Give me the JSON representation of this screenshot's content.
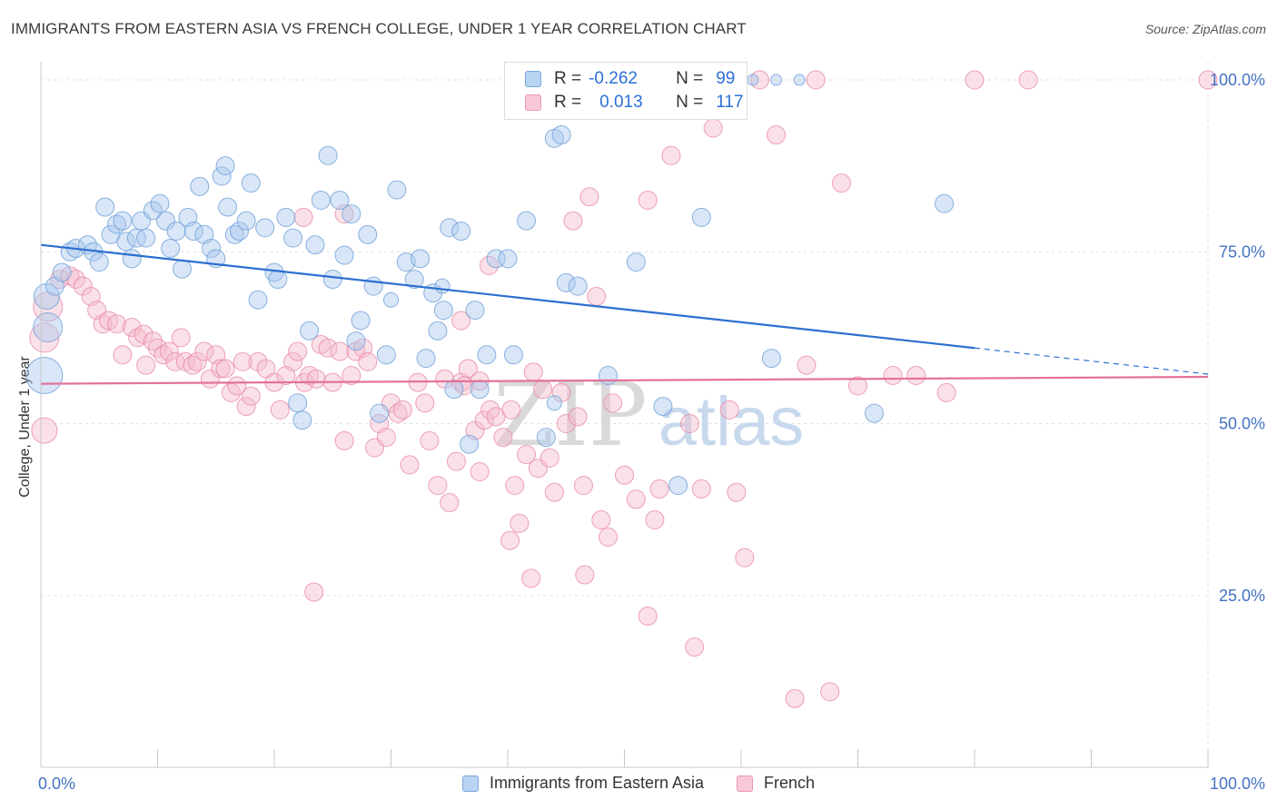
{
  "header": {
    "title": "IMMIGRANTS FROM EASTERN ASIA VS FRENCH COLLEGE, UNDER 1 YEAR CORRELATION CHART",
    "source": "Source: ZipAtlas.com"
  },
  "legend": {
    "rows": [
      {
        "r_label": "R =",
        "r_value": "-0.262",
        "n_label": "N =",
        "n_value": "99"
      },
      {
        "r_label": "R =",
        "r_value": "0.013",
        "n_label": "N =",
        "n_value": "117"
      }
    ]
  },
  "watermark": {
    "zip": "ZIP",
    "atlas": "atlas"
  },
  "colors": {
    "blue_fill": "#a9c8ee",
    "blue_stroke": "#6f9fd8",
    "blue_line": "#2b6fd0",
    "pink_fill": "#f5bccd",
    "pink_stroke": "#e98aa8",
    "pink_line": "#e2739a",
    "tick_label": "#4472c4",
    "grid": "#e0e0e0"
  },
  "chart_data": {
    "type": "scatter",
    "title": "IMMIGRANTS FROM EASTERN ASIA VS FRENCH COLLEGE, UNDER 1 YEAR CORRELATION CHART",
    "xlabel": "",
    "ylabel": "College, Under 1 year",
    "xlim": [
      0,
      100
    ],
    "ylim": [
      0,
      102
    ],
    "x_tick_labels": [
      "0.0%",
      "100.0%"
    ],
    "y_tick_labels": [
      "25.0%",
      "50.0%",
      "75.0%",
      "100.0%"
    ],
    "y_ticks": [
      25,
      50,
      75,
      100
    ],
    "grid": true,
    "legend_position": "bottom",
    "series": [
      {
        "name": "Immigrants from Eastern Asia",
        "color": "#a9c8ee",
        "r": -0.262,
        "n": 99,
        "trend": {
          "y_at_0": 76.0,
          "y_at_80": 61.0,
          "solid_until": 80,
          "dashed_to": 100,
          "y_at_100": 57.2
        },
        "points": [
          [
            0.5,
            68.5,
            14
          ],
          [
            0.3,
            57,
            20
          ],
          [
            0.6,
            64,
            16
          ],
          [
            1.2,
            70,
            10
          ],
          [
            1.8,
            72,
            10
          ],
          [
            2.5,
            75,
            10
          ],
          [
            3.0,
            75.5,
            10
          ],
          [
            4.0,
            76,
            10
          ],
          [
            4.5,
            75,
            10
          ],
          [
            5.0,
            73.5,
            10
          ],
          [
            5.5,
            81.5,
            10
          ],
          [
            6.0,
            77.5,
            10
          ],
          [
            6.5,
            79,
            10
          ],
          [
            7.0,
            79.5,
            10
          ],
          [
            7.3,
            76.5,
            10
          ],
          [
            7.8,
            74,
            10
          ],
          [
            8.2,
            77,
            10
          ],
          [
            8.6,
            79.5,
            10
          ],
          [
            9.0,
            77,
            10
          ],
          [
            9.6,
            81,
            10
          ],
          [
            10.2,
            82,
            10
          ],
          [
            10.7,
            79.5,
            10
          ],
          [
            11.1,
            75.5,
            10
          ],
          [
            11.6,
            78,
            10
          ],
          [
            12.1,
            72.5,
            10
          ],
          [
            12.6,
            80,
            10
          ],
          [
            13.1,
            78,
            10
          ],
          [
            13.6,
            84.5,
            10
          ],
          [
            14.0,
            77.5,
            10
          ],
          [
            14.6,
            75.5,
            10
          ],
          [
            15.0,
            74,
            10
          ],
          [
            15.5,
            86,
            10
          ],
          [
            15.8,
            87.5,
            10
          ],
          [
            16.0,
            81.5,
            10
          ],
          [
            16.6,
            77.5,
            10
          ],
          [
            17.0,
            78,
            10
          ],
          [
            17.6,
            79.5,
            10
          ],
          [
            18.0,
            85,
            10
          ],
          [
            18.6,
            68,
            10
          ],
          [
            19.2,
            78.5,
            10
          ],
          [
            20.0,
            72,
            10
          ],
          [
            20.3,
            71,
            10
          ],
          [
            21.0,
            80,
            10
          ],
          [
            21.6,
            77,
            10
          ],
          [
            22.0,
            53,
            10
          ],
          [
            22.4,
            50.5,
            10
          ],
          [
            23.0,
            63.5,
            10
          ],
          [
            23.5,
            76,
            10
          ],
          [
            24.0,
            82.5,
            10
          ],
          [
            24.6,
            89,
            10
          ],
          [
            25.0,
            71,
            10
          ],
          [
            25.6,
            82.5,
            10
          ],
          [
            26.0,
            74.5,
            10
          ],
          [
            26.6,
            80.5,
            10
          ],
          [
            27.0,
            62,
            10
          ],
          [
            27.4,
            65,
            10
          ],
          [
            28.0,
            77.5,
            10
          ],
          [
            28.5,
            70,
            10
          ],
          [
            29.0,
            51.5,
            10
          ],
          [
            29.6,
            60,
            10
          ],
          [
            30.5,
            84,
            10
          ],
          [
            31.3,
            73.5,
            10
          ],
          [
            32.0,
            71,
            10
          ],
          [
            32.5,
            74,
            10
          ],
          [
            33.0,
            59.5,
            10
          ],
          [
            33.6,
            69,
            10
          ],
          [
            34.0,
            63.5,
            10
          ],
          [
            34.5,
            66.5,
            10
          ],
          [
            35.0,
            78.5,
            10
          ],
          [
            35.4,
            55,
            10
          ],
          [
            36.0,
            78,
            10
          ],
          [
            36.7,
            47,
            10
          ],
          [
            37.2,
            66.5,
            10
          ],
          [
            37.6,
            55,
            10
          ],
          [
            38.2,
            60,
            10
          ],
          [
            39.0,
            74,
            10
          ],
          [
            40.0,
            74,
            10
          ],
          [
            40.5,
            60,
            10
          ],
          [
            41.6,
            79.5,
            10
          ],
          [
            42.6,
            96.5,
            10
          ],
          [
            43.3,
            48,
            10
          ],
          [
            44.0,
            91.5,
            10
          ],
          [
            44.6,
            92,
            10
          ],
          [
            45.0,
            70.5,
            10
          ],
          [
            46.0,
            70,
            10
          ],
          [
            48.6,
            57,
            10
          ],
          [
            51.0,
            73.5,
            10
          ],
          [
            53.3,
            52.5,
            10
          ],
          [
            54.6,
            41,
            10
          ],
          [
            56.6,
            80,
            10
          ],
          [
            62.6,
            59.5,
            10
          ],
          [
            71.4,
            51.5,
            10
          ],
          [
            77.4,
            82,
            10
          ],
          [
            63.0,
            100,
            6
          ],
          [
            65.0,
            100,
            6
          ],
          [
            61.0,
            100,
            6
          ],
          [
            58.0,
            100,
            6
          ],
          [
            30.0,
            68,
            8
          ],
          [
            34.4,
            70,
            8
          ],
          [
            44.0,
            53,
            8
          ]
        ]
      },
      {
        "name": "French",
        "color": "#f5bccd",
        "r": 0.013,
        "n": 117,
        "trend": {
          "y_at_0": 55.8,
          "y_at_100": 56.8
        },
        "points": [
          [
            0.3,
            62.5,
            16
          ],
          [
            0.6,
            67,
            16
          ],
          [
            0.3,
            49,
            14
          ],
          [
            1.6,
            71,
            10
          ],
          [
            2.5,
            71.5,
            10
          ],
          [
            3.0,
            71,
            10
          ],
          [
            3.6,
            70,
            10
          ],
          [
            4.3,
            68.5,
            10
          ],
          [
            4.8,
            66.5,
            10
          ],
          [
            5.3,
            64.5,
            10
          ],
          [
            5.8,
            65,
            10
          ],
          [
            6.5,
            64.5,
            10
          ],
          [
            7.0,
            60,
            10
          ],
          [
            7.8,
            64,
            10
          ],
          [
            8.3,
            62.5,
            10
          ],
          [
            8.8,
            63,
            10
          ],
          [
            9.0,
            58.5,
            10
          ],
          [
            9.6,
            62,
            10
          ],
          [
            10.0,
            61,
            10
          ],
          [
            10.5,
            60,
            10
          ],
          [
            11.0,
            60.5,
            10
          ],
          [
            11.5,
            59,
            10
          ],
          [
            12.0,
            62.5,
            10
          ],
          [
            12.4,
            59,
            10
          ],
          [
            13.0,
            58.5,
            10
          ],
          [
            13.4,
            59,
            10
          ],
          [
            14.0,
            60.5,
            10
          ],
          [
            14.5,
            56.5,
            10
          ],
          [
            15.0,
            60,
            10
          ],
          [
            15.4,
            58,
            10
          ],
          [
            15.8,
            58,
            10
          ],
          [
            16.3,
            54.5,
            10
          ],
          [
            16.8,
            55.5,
            10
          ],
          [
            17.3,
            59,
            10
          ],
          [
            17.6,
            52.5,
            10
          ],
          [
            18.0,
            54,
            10
          ],
          [
            18.6,
            59,
            10
          ],
          [
            19.3,
            58,
            10
          ],
          [
            20.0,
            56,
            10
          ],
          [
            20.5,
            52,
            10
          ],
          [
            21.0,
            57,
            10
          ],
          [
            21.6,
            59,
            10
          ],
          [
            22.0,
            60.5,
            10
          ],
          [
            22.6,
            56,
            10
          ],
          [
            23.0,
            57,
            10
          ],
          [
            23.6,
            56.5,
            10
          ],
          [
            24.0,
            61.5,
            10
          ],
          [
            24.6,
            61,
            10
          ],
          [
            25.0,
            56,
            10
          ],
          [
            25.6,
            60.5,
            10
          ],
          [
            26.0,
            47.5,
            10
          ],
          [
            26.6,
            57,
            10
          ],
          [
            27.0,
            60.5,
            10
          ],
          [
            27.6,
            61,
            10
          ],
          [
            28.0,
            59,
            10
          ],
          [
            28.6,
            46.5,
            10
          ],
          [
            29.0,
            50,
            10
          ],
          [
            29.6,
            48,
            10
          ],
          [
            30.0,
            53,
            10
          ],
          [
            30.6,
            51.5,
            10
          ],
          [
            31.0,
            52,
            10
          ],
          [
            31.6,
            44,
            10
          ],
          [
            32.3,
            56,
            10
          ],
          [
            32.9,
            53,
            10
          ],
          [
            33.3,
            47.5,
            10
          ],
          [
            34.0,
            41,
            10
          ],
          [
            34.6,
            56.5,
            10
          ],
          [
            35.0,
            38.5,
            10
          ],
          [
            35.6,
            44.5,
            10
          ],
          [
            36.0,
            56,
            10
          ],
          [
            36.6,
            58,
            10
          ],
          [
            37.2,
            49,
            10
          ],
          [
            37.6,
            43,
            10
          ],
          [
            38.0,
            50.5,
            10
          ],
          [
            38.5,
            52,
            10
          ],
          [
            39.0,
            51,
            10
          ],
          [
            39.6,
            48,
            10
          ],
          [
            40.2,
            33,
            10
          ],
          [
            40.6,
            41,
            10
          ],
          [
            41.0,
            35.5,
            10
          ],
          [
            41.6,
            45.5,
            10
          ],
          [
            42.2,
            57.5,
            10
          ],
          [
            42.6,
            43.5,
            10
          ],
          [
            43.0,
            55,
            10
          ],
          [
            43.6,
            45,
            10
          ],
          [
            44.0,
            40,
            10
          ],
          [
            44.6,
            54.5,
            10
          ],
          [
            45.0,
            50,
            10
          ],
          [
            45.6,
            79.5,
            10
          ],
          [
            46.0,
            51,
            10
          ],
          [
            46.5,
            41,
            10
          ],
          [
            47.0,
            83,
            10
          ],
          [
            47.6,
            68.5,
            10
          ],
          [
            48.0,
            36,
            10
          ],
          [
            48.6,
            33.5,
            10
          ],
          [
            49.0,
            53,
            10
          ],
          [
            50.0,
            42.5,
            10
          ],
          [
            51.0,
            39,
            10
          ],
          [
            52.0,
            82.5,
            10
          ],
          [
            52.6,
            36,
            10
          ],
          [
            53.0,
            40.5,
            10
          ],
          [
            54.0,
            89,
            10
          ],
          [
            55.6,
            50,
            10
          ],
          [
            56.0,
            17.5,
            10
          ],
          [
            56.6,
            40.5,
            10
          ],
          [
            57.6,
            93,
            10
          ],
          [
            59.0,
            52,
            10
          ],
          [
            59.6,
            40,
            10
          ],
          [
            60.3,
            30.5,
            10
          ],
          [
            61.6,
            100,
            10
          ],
          [
            63.0,
            92,
            10
          ],
          [
            64.6,
            10,
            10
          ],
          [
            65.6,
            58.5,
            10
          ],
          [
            66.4,
            100,
            10
          ],
          [
            67.6,
            11,
            10
          ],
          [
            68.6,
            85,
            10
          ],
          [
            70.0,
            55.5,
            10
          ],
          [
            73.0,
            57,
            10
          ],
          [
            75.0,
            57,
            10
          ],
          [
            77.6,
            54.5,
            10
          ],
          [
            80.0,
            100,
            10
          ],
          [
            84.6,
            100,
            10
          ],
          [
            100.0,
            100,
            10
          ],
          [
            22.5,
            80,
            10
          ],
          [
            26.0,
            80.5,
            10
          ],
          [
            23.4,
            25.5,
            10
          ],
          [
            46.6,
            28,
            10
          ],
          [
            52.0,
            22,
            10
          ],
          [
            42.0,
            27.5,
            10
          ],
          [
            36.0,
            65,
            10
          ],
          [
            38.4,
            73,
            10
          ],
          [
            40.3,
            52,
            10
          ],
          [
            36.3,
            55.5,
            10
          ],
          [
            37.6,
            56.2,
            10
          ]
        ]
      }
    ]
  }
}
